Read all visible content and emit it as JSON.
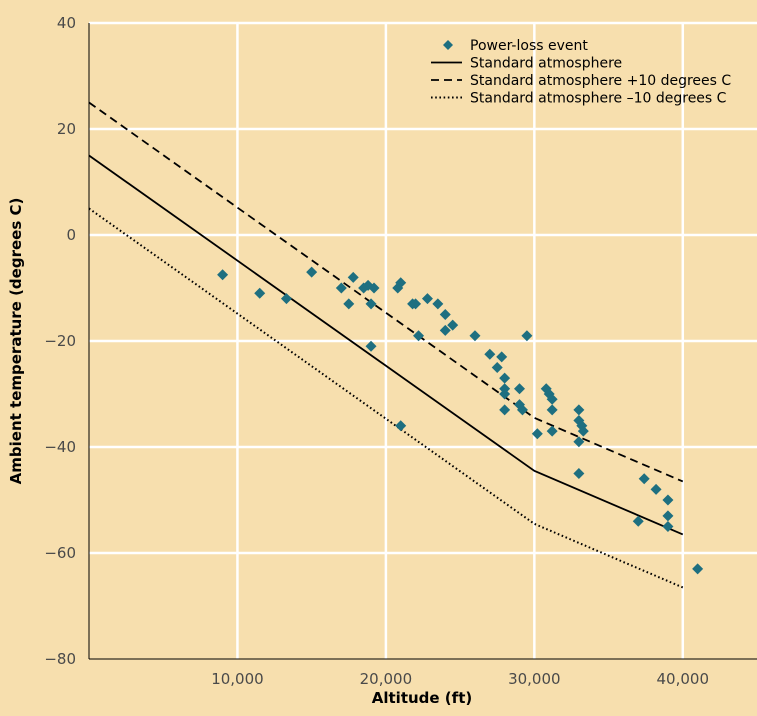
{
  "colors": {
    "background": "#f7dfae",
    "grid": "#ffffff",
    "marker": "#1e6f80",
    "line": "#000000",
    "tick_text": "#4a4a4a"
  },
  "chart_data": {
    "type": "scatter",
    "title": "",
    "xlabel": "Altitude (ft)",
    "ylabel": "Ambient temperature (degrees C)",
    "xlim": [
      0,
      45000
    ],
    "ylim": [
      -80,
      40
    ],
    "grid": true,
    "legend_position": "top-right",
    "x_ticks": [
      10000,
      20000,
      30000,
      40000
    ],
    "x_tick_labels": [
      "10,000",
      "20,000",
      "30,000",
      "40,000"
    ],
    "y_ticks": [
      40,
      20,
      0,
      -20,
      -40,
      -60,
      -80
    ],
    "y_tick_labels": [
      "40",
      "20",
      "0",
      "−20",
      "−40",
      "−60",
      "−80"
    ],
    "series": [
      {
        "name": "Power-loss event",
        "kind": "scatter",
        "marker": "diamond",
        "points": [
          [
            9000,
            -7.5
          ],
          [
            11500,
            -11
          ],
          [
            13300,
            -12
          ],
          [
            15000,
            -7
          ],
          [
            17000,
            -10
          ],
          [
            17500,
            -13
          ],
          [
            17800,
            -8
          ],
          [
            18500,
            -10
          ],
          [
            18800,
            -9.5
          ],
          [
            19000,
            -13
          ],
          [
            19000,
            -21
          ],
          [
            19200,
            -10
          ],
          [
            20800,
            -10
          ],
          [
            21000,
            -9
          ],
          [
            21000,
            -36
          ],
          [
            21800,
            -13
          ],
          [
            22000,
            -13
          ],
          [
            22200,
            -19
          ],
          [
            22800,
            -12
          ],
          [
            23500,
            -13
          ],
          [
            24000,
            -15
          ],
          [
            24000,
            -18
          ],
          [
            24500,
            -17
          ],
          [
            26000,
            -19
          ],
          [
            27000,
            -22.5
          ],
          [
            27500,
            -25
          ],
          [
            27800,
            -23
          ],
          [
            28000,
            -27
          ],
          [
            28000,
            -30
          ],
          [
            28000,
            -33
          ],
          [
            28000,
            -29
          ],
          [
            29000,
            -29
          ],
          [
            29000,
            -32
          ],
          [
            29200,
            -33
          ],
          [
            29500,
            -19
          ],
          [
            30200,
            -37.5
          ],
          [
            30800,
            -29
          ],
          [
            31000,
            -30
          ],
          [
            31200,
            -31
          ],
          [
            31200,
            -33
          ],
          [
            31200,
            -37
          ],
          [
            33000,
            -33
          ],
          [
            33000,
            -35
          ],
          [
            33000,
            -39
          ],
          [
            33000,
            -45
          ],
          [
            33200,
            -36
          ],
          [
            33300,
            -37
          ],
          [
            37000,
            -54
          ],
          [
            37400,
            -46
          ],
          [
            38200,
            -48
          ],
          [
            39000,
            -50
          ],
          [
            39000,
            -53
          ],
          [
            39000,
            -55
          ],
          [
            41000,
            -63
          ]
        ]
      },
      {
        "name": "Standard atmosphere",
        "kind": "line",
        "dash": "solid",
        "points": [
          [
            0,
            15
          ],
          [
            30000,
            -44.5
          ],
          [
            40000,
            -56.5
          ]
        ]
      },
      {
        "name": "Standard atmosphere +10 degrees C",
        "kind": "line",
        "dash": "dashed",
        "points": [
          [
            0,
            25
          ],
          [
            30000,
            -34.5
          ],
          [
            40000,
            -46.5
          ]
        ]
      },
      {
        "name": "Standard atmosphere –10 degrees C",
        "kind": "line",
        "dash": "dotted",
        "points": [
          [
            0,
            5
          ],
          [
            30000,
            -54.5
          ],
          [
            40000,
            -66.5
          ]
        ]
      }
    ]
  }
}
